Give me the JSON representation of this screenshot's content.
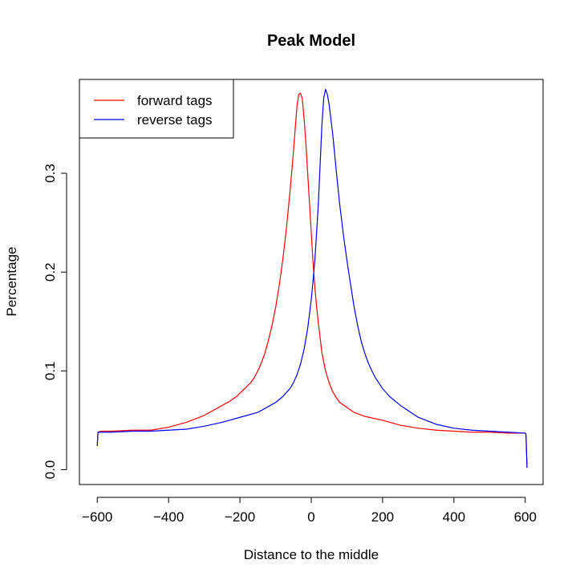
{
  "chart_data": {
    "type": "line",
    "title": "Peak Model",
    "xlabel": "Distance to the middle",
    "ylabel": "Percentage",
    "xlim": [
      -650,
      650
    ],
    "ylim": [
      -0.015,
      0.395
    ],
    "xticks": [
      -600,
      -400,
      -200,
      0,
      200,
      400,
      600
    ],
    "xtick_labels": [
      "−600",
      "−400",
      "−200",
      "0",
      "200",
      "400",
      "600"
    ],
    "yticks": [
      0.0,
      0.1,
      0.2,
      0.3
    ],
    "ytick_labels": [
      "0.0",
      "0.1",
      "0.2",
      "0.3"
    ],
    "legend": {
      "placement": "top-left"
    },
    "grid": false,
    "series": [
      {
        "name": "forward tags",
        "color": "#ff0000",
        "x": [
          -600,
          -598,
          -590,
          -560,
          -500,
          -450,
          -400,
          -350,
          -300,
          -260,
          -230,
          -210,
          -190,
          -170,
          -160,
          -150,
          -140,
          -130,
          -120,
          -110,
          -100,
          -90,
          -80,
          -70,
          -60,
          -55,
          -50,
          -45,
          -40,
          -35,
          -30,
          -25,
          -20,
          -15,
          -10,
          -5,
          0,
          5,
          10,
          15,
          20,
          25,
          30,
          40,
          50,
          60,
          70,
          80,
          100,
          120,
          150,
          200,
          250,
          300,
          350,
          400,
          450,
          500,
          550,
          600,
          602,
          605
        ],
        "y": [
          0.024,
          0.038,
          0.039,
          0.039,
          0.04,
          0.04,
          0.043,
          0.048,
          0.055,
          0.063,
          0.069,
          0.074,
          0.081,
          0.088,
          0.093,
          0.1,
          0.108,
          0.118,
          0.131,
          0.146,
          0.164,
          0.186,
          0.212,
          0.243,
          0.28,
          0.3,
          0.322,
          0.345,
          0.368,
          0.38,
          0.381,
          0.375,
          0.355,
          0.33,
          0.3,
          0.27,
          0.24,
          0.21,
          0.185,
          0.165,
          0.148,
          0.133,
          0.118,
          0.1,
          0.088,
          0.079,
          0.073,
          0.068,
          0.063,
          0.058,
          0.054,
          0.05,
          0.045,
          0.042,
          0.04,
          0.039,
          0.038,
          0.038,
          0.037,
          0.037,
          0.036,
          0.002
        ]
      },
      {
        "name": "reverse tags",
        "color": "#0000ff",
        "x": [
          -600,
          -598,
          -590,
          -560,
          -500,
          -450,
          -400,
          -350,
          -300,
          -250,
          -200,
          -150,
          -120,
          -100,
          -80,
          -60,
          -50,
          -40,
          -30,
          -20,
          -10,
          0,
          5,
          10,
          15,
          20,
          25,
          30,
          35,
          40,
          45,
          50,
          55,
          60,
          65,
          70,
          75,
          80,
          90,
          100,
          110,
          120,
          130,
          140,
          150,
          160,
          170,
          180,
          200,
          220,
          250,
          300,
          350,
          400,
          450,
          500,
          550,
          600,
          602,
          605
        ],
        "y": [
          0.024,
          0.038,
          0.038,
          0.038,
          0.039,
          0.039,
          0.04,
          0.041,
          0.044,
          0.048,
          0.053,
          0.058,
          0.064,
          0.068,
          0.074,
          0.082,
          0.088,
          0.096,
          0.107,
          0.122,
          0.143,
          0.172,
          0.191,
          0.212,
          0.24,
          0.27,
          0.31,
          0.35,
          0.376,
          0.385,
          0.38,
          0.37,
          0.355,
          0.34,
          0.322,
          0.303,
          0.285,
          0.268,
          0.238,
          0.212,
          0.188,
          0.165,
          0.146,
          0.13,
          0.118,
          0.108,
          0.1,
          0.093,
          0.082,
          0.074,
          0.065,
          0.053,
          0.046,
          0.042,
          0.04,
          0.039,
          0.038,
          0.037,
          0.036,
          0.002
        ]
      }
    ]
  }
}
